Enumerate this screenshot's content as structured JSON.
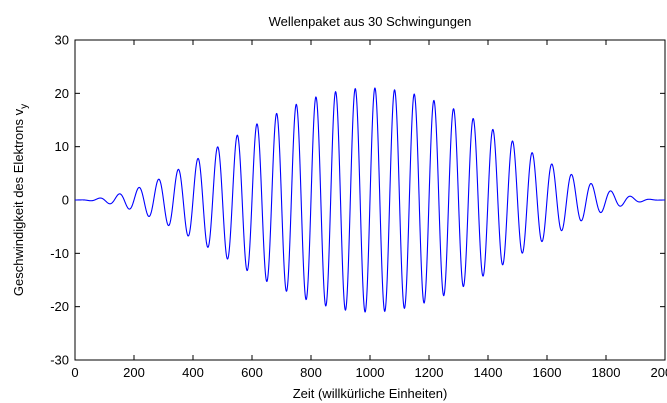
{
  "chart_data": {
    "type": "line",
    "title": "Wellenpaket aus 30 Schwingungen",
    "xlabel": "Zeit (willkürliche Einheiten)",
    "ylabel": {
      "main": "Geschwindigkeit des Elektrons v",
      "subscript": "y"
    },
    "xlim": [
      0,
      2000
    ],
    "ylim": [
      -30,
      30
    ],
    "xticks": [
      0,
      200,
      400,
      600,
      800,
      1000,
      1200,
      1400,
      1600,
      1800,
      2000
    ],
    "yticks": [
      -30,
      -20,
      -10,
      0,
      10,
      20,
      30
    ],
    "grid": false,
    "colors": {
      "series": "#0000ff",
      "axes": "#000000",
      "background": "#ffffff"
    },
    "series": [
      {
        "oscillations": 30,
        "amplitude": 21,
        "x": [
          0,
          2000
        ],
        "envelope": "sine-squared"
      }
    ]
  }
}
